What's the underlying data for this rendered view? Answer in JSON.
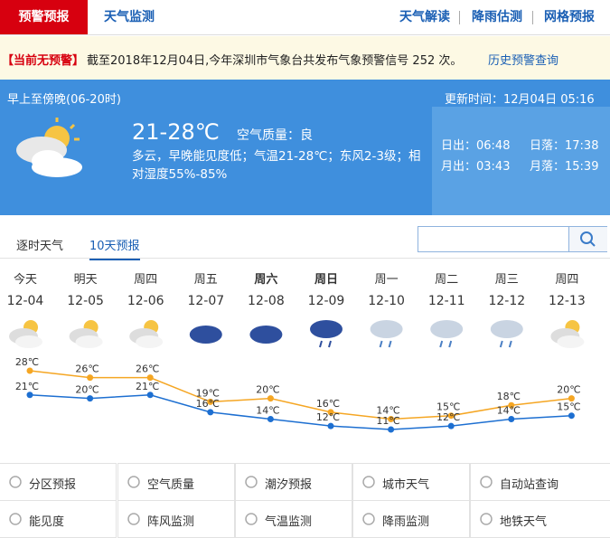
{
  "nav": {
    "tabs": [
      "预警预报",
      "天气监测"
    ],
    "links": [
      "天气解读",
      "降雨估测",
      "网格预报"
    ]
  },
  "alert": {
    "status": "【当前无预警】",
    "message": "截至2018年12月04日,今年深圳市气象台共发布气象预警信号 252 次。",
    "link": "历史预警查询"
  },
  "today": {
    "period": "早上至傍晚(06-20时)",
    "updated": "更新时间：12月04日 05:16",
    "temperature": "21-28℃",
    "air_quality": "空气质量：良",
    "description": "多云，早晚能见度低；气温21-28℃；东风2-3级；相对湿度55%-85%",
    "sunrise": "日出：06:48",
    "sunset": "日落：17:38",
    "moonrise": "月出：03:43",
    "moonset": "月落：15:39"
  },
  "forecast_tabs": [
    "逐时天气",
    "10天预报"
  ],
  "forecast": {
    "weekdays": [
      "今天",
      "明天",
      "周四",
      "周五",
      "周六",
      "周日",
      "周一",
      "周二",
      "周三",
      "周四"
    ],
    "dates": [
      "12-04",
      "12-05",
      "12-06",
      "12-07",
      "12-08",
      "12-09",
      "12-10",
      "12-11",
      "12-12",
      "12-13"
    ],
    "high": {
      "color": "#f5a623",
      "values": [
        28,
        26,
        26,
        19,
        20,
        16,
        14,
        15,
        18,
        20
      ],
      "value_labels": [
        "28℃",
        "26℃",
        "26℃",
        "19℃",
        "20℃",
        "16℃",
        "14℃",
        "15℃",
        "18℃",
        "20℃"
      ]
    },
    "low": {
      "color": "#1d6fd1",
      "values": [
        21,
        20,
        21,
        16,
        14,
        12,
        11,
        12,
        14,
        15
      ],
      "value_labels": [
        "21℃",
        "20℃",
        "21℃",
        "16℃",
        "14℃",
        "12℃",
        "11℃",
        "12℃",
        "14℃",
        "15℃"
      ]
    }
  },
  "services": [
    "分区预报",
    "空气质量",
    "潮汐预报",
    "城市天气",
    "自动站查询",
    "能见度",
    "阵风监测",
    "气温监测",
    "降雨监测",
    "地铁天气"
  ]
}
